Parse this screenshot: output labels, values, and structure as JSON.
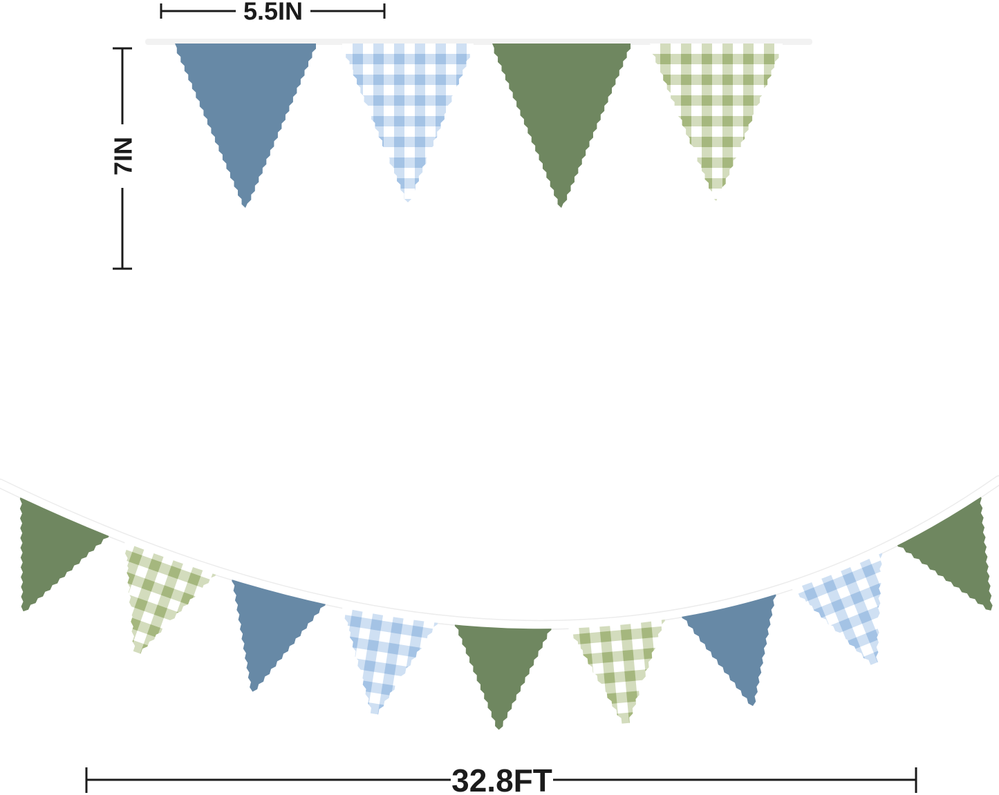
{
  "annotations": {
    "flag_width_label": "5.5IN",
    "flag_height_label": "7IN",
    "banner_length_label": "32.8FT"
  },
  "colors": {
    "solid_blue": "#6789a6",
    "solid_green": "#6f8760",
    "gingham_blue_dark": "#a4c3e5",
    "gingham_blue_light": "#cfe0f3",
    "gingham_green_dark": "#a5b77e",
    "gingham_green_light": "#d3dcbd",
    "string_white": "#ffffff",
    "string_shadow": "#ececec",
    "top_string_band": "#f2f2f2",
    "dimension_line": "#1b1b1b"
  },
  "top_row": {
    "flags": [
      "solid-blue",
      "gingham-blue",
      "solid-green",
      "gingham-green"
    ]
  },
  "bottom_row": {
    "flags": [
      "solid-green",
      "gingham-green",
      "solid-blue",
      "gingham-blue",
      "solid-green",
      "gingham-green",
      "solid-blue",
      "gingham-blue",
      "solid-green"
    ]
  }
}
